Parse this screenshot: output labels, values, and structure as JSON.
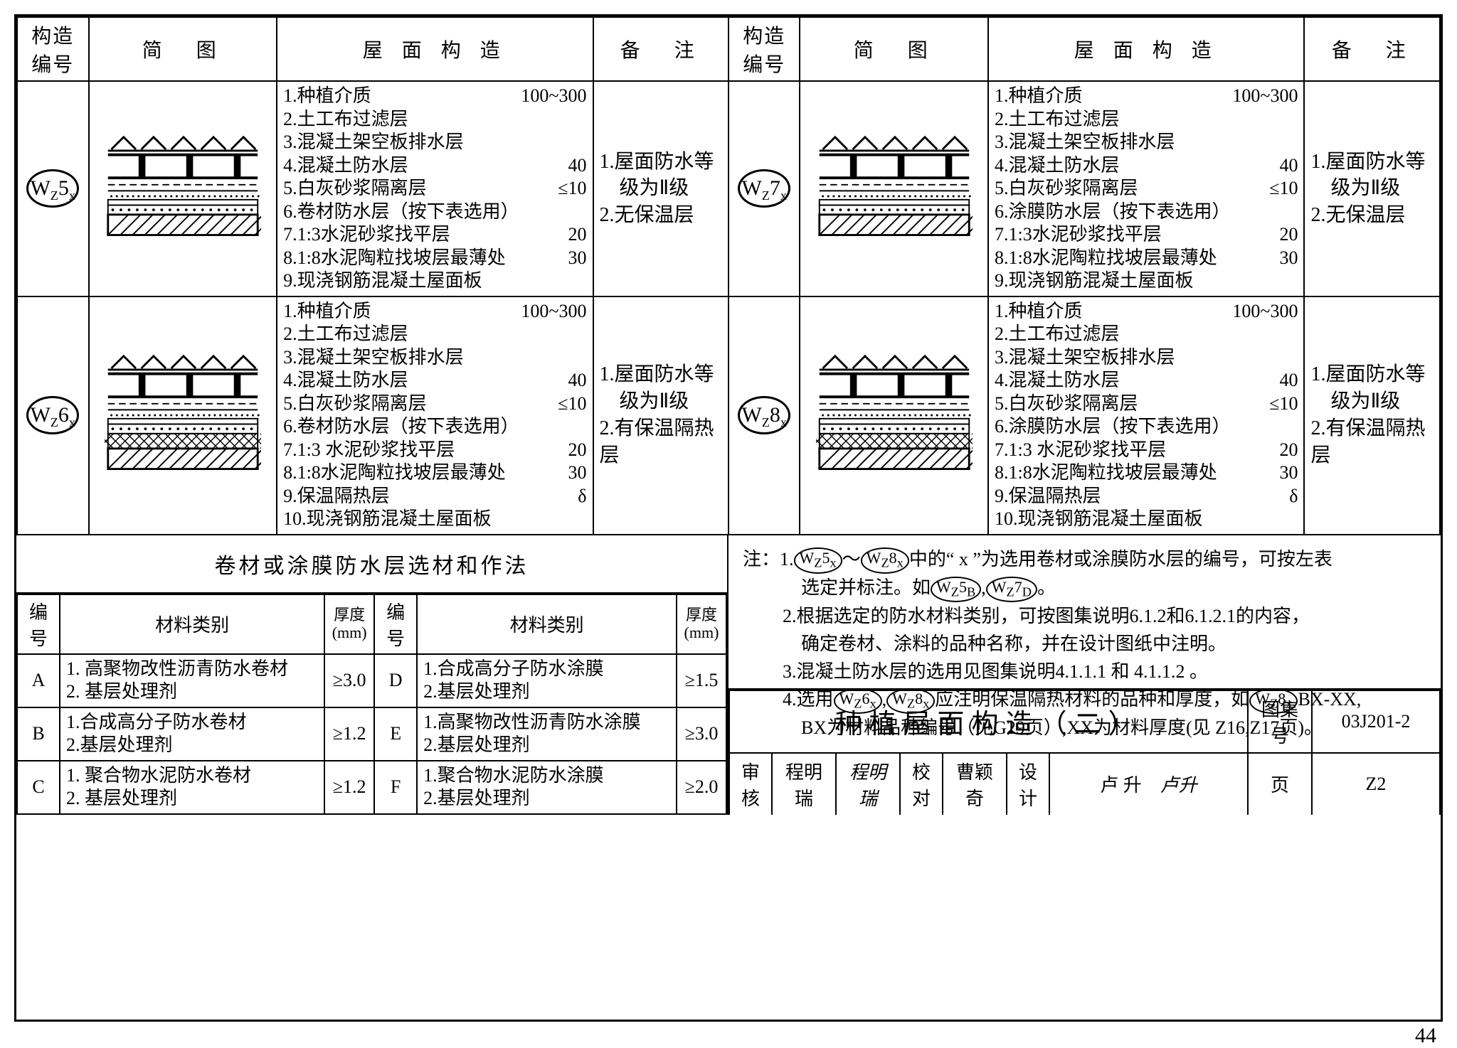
{
  "headers": {
    "code": "构造编号",
    "diagram": "简　图",
    "layers": "屋 面 构 造",
    "remark": "备　注"
  },
  "rows": [
    {
      "code": "Wz5x",
      "layers": [
        {
          "t": "1.种植介质",
          "v": "100~300"
        },
        {
          "t": "2.土工布过滤层",
          "v": ""
        },
        {
          "t": "3.混凝土架空板排水层",
          "v": ""
        },
        {
          "t": "4.混凝土防水层",
          "v": "40"
        },
        {
          "t": "5.白灰砂浆隔离层",
          "v": "≤10"
        },
        {
          "t": "6.卷材防水层（按下表选用）",
          "v": ""
        },
        {
          "t": "7.1:3水泥砂浆找平层",
          "v": "20"
        },
        {
          "t": "8.1:8水泥陶粒找坡层最薄处",
          "v": "30"
        },
        {
          "t": "9.现浇钢筋混凝土屋面板",
          "v": ""
        }
      ],
      "remark": [
        "1.屋面防水等",
        "　级为Ⅱ级",
        "2.无保温层"
      ]
    },
    {
      "code": "Wz7x",
      "layers": [
        {
          "t": "1.种植介质",
          "v": "100~300"
        },
        {
          "t": "2.土工布过滤层",
          "v": ""
        },
        {
          "t": "3.混凝土架空板排水层",
          "v": ""
        },
        {
          "t": "4.混凝土防水层",
          "v": "40"
        },
        {
          "t": "5.白灰砂浆隔离层",
          "v": "≤10"
        },
        {
          "t": "6.涂膜防水层（按下表选用）",
          "v": ""
        },
        {
          "t": "7.1:3水泥砂浆找平层",
          "v": "20"
        },
        {
          "t": "8.1:8水泥陶粒找坡层最薄处",
          "v": "30"
        },
        {
          "t": "9.现浇钢筋混凝土屋面板",
          "v": ""
        }
      ],
      "remark": [
        "1.屋面防水等",
        "　级为Ⅱ级",
        "2.无保温层"
      ]
    },
    {
      "code": "Wz6x",
      "layers": [
        {
          "t": "1.种植介质",
          "v": "100~300"
        },
        {
          "t": "2.土工布过滤层",
          "v": ""
        },
        {
          "t": "3.混凝土架空板排水层",
          "v": ""
        },
        {
          "t": "4.混凝土防水层",
          "v": "40"
        },
        {
          "t": "5.白灰砂浆隔离层",
          "v": "≤10"
        },
        {
          "t": "6.卷材防水层（按下表选用）",
          "v": ""
        },
        {
          "t": "7.1:3 水泥砂浆找平层",
          "v": "20"
        },
        {
          "t": "8.1:8水泥陶粒找坡层最薄处",
          "v": "30"
        },
        {
          "t": "9.保温隔热层",
          "v": "δ"
        },
        {
          "t": "10.现浇钢筋混凝土屋面板",
          "v": ""
        }
      ],
      "remark": [
        "1.屋面防水等",
        "　级为Ⅱ级",
        "2.有保温隔热层"
      ]
    },
    {
      "code": "Wz8x",
      "layers": [
        {
          "t": "1.种植介质",
          "v": "100~300"
        },
        {
          "t": "2.土工布过滤层",
          "v": ""
        },
        {
          "t": "3.混凝土架空板排水层",
          "v": ""
        },
        {
          "t": "4.混凝土防水层",
          "v": "40"
        },
        {
          "t": "5.白灰砂浆隔离层",
          "v": "≤10"
        },
        {
          "t": "6.涂膜防水层（按下表选用）",
          "v": ""
        },
        {
          "t": "7.1:3 水泥砂浆找平层",
          "v": "20"
        },
        {
          "t": "8.1:8水泥陶粒找坡层最薄处",
          "v": "30"
        },
        {
          "t": "9.保温隔热层",
          "v": "δ"
        },
        {
          "t": "10.现浇钢筋混凝土屋面板",
          "v": ""
        }
      ],
      "remark": [
        "1.屋面防水等",
        "　级为Ⅱ级",
        "2.有保温隔热层"
      ]
    }
  ],
  "material": {
    "title": "卷材或涂膜防水层选材和作法",
    "headers": {
      "code": "编号",
      "kind": "材料类别",
      "thk": "厚度\n(mm)"
    },
    "rows": [
      {
        "c": "A",
        "d": "1. 高聚物改性沥青防水卷材\n2. 基层处理剂",
        "t": "≥3.0"
      },
      {
        "c": "D",
        "d": "1.合成高分子防水涂膜\n2.基层处理剂",
        "t": "≥1.5"
      },
      {
        "c": "B",
        "d": "1.合成高分子防水卷材\n2.基层处理剂",
        "t": "≥1.2"
      },
      {
        "c": "E",
        "d": "1.高聚物改性沥青防水涂膜\n2.基层处理剂",
        "t": "≥3.0"
      },
      {
        "c": "C",
        "d": "1. 聚合物水泥防水卷材\n2. 基层处理剂",
        "t": "≥1.2"
      },
      {
        "c": "F",
        "d": "1.聚合物水泥防水涂膜\n2.基层处理剂",
        "t": "≥2.0"
      }
    ]
  },
  "notes": {
    "lead": "注：",
    "items": [
      "1.{Wz5x}～{Wz8x}中的“ x ”为选用卷材或涂膜防水层的编号，可按左表",
      "　选定并标注。如{Wz5B},{Wz7D}。",
      "2.根据选定的防水材料类别，可按图集说明6.1.2和6.1.2.1的内容，",
      "　确定卷材、涂料的品种名称，并在设计图纸中注明。",
      "3.混凝土防水层的选用见图集说明4.1.1.1 和 4.1.1.2 。",
      "4.选用{Wz6x},{Wz8x}应注明保温隔热材料的品种和厚度，如{Wz8x}BX-XX,",
      "　BX为材料品种编号（见G29页）,XX为材料厚度(见 Z16,Z17页)。"
    ]
  },
  "titleblock": {
    "title": "种植屋面构造（二）",
    "setno_label": "图集号",
    "setno": "03J201-2",
    "page_label": "页",
    "page": "Z2",
    "review_label": "审核",
    "review_name": "程明瑞",
    "check_label": "校对",
    "check_name": "曹颖奇",
    "design_label": "设计",
    "design_name": "卢 升"
  },
  "pagenum": "44",
  "diagram": {
    "hasInsulation": {
      "wz5": false,
      "wz6": true,
      "wz7": false,
      "wz8": true
    }
  }
}
